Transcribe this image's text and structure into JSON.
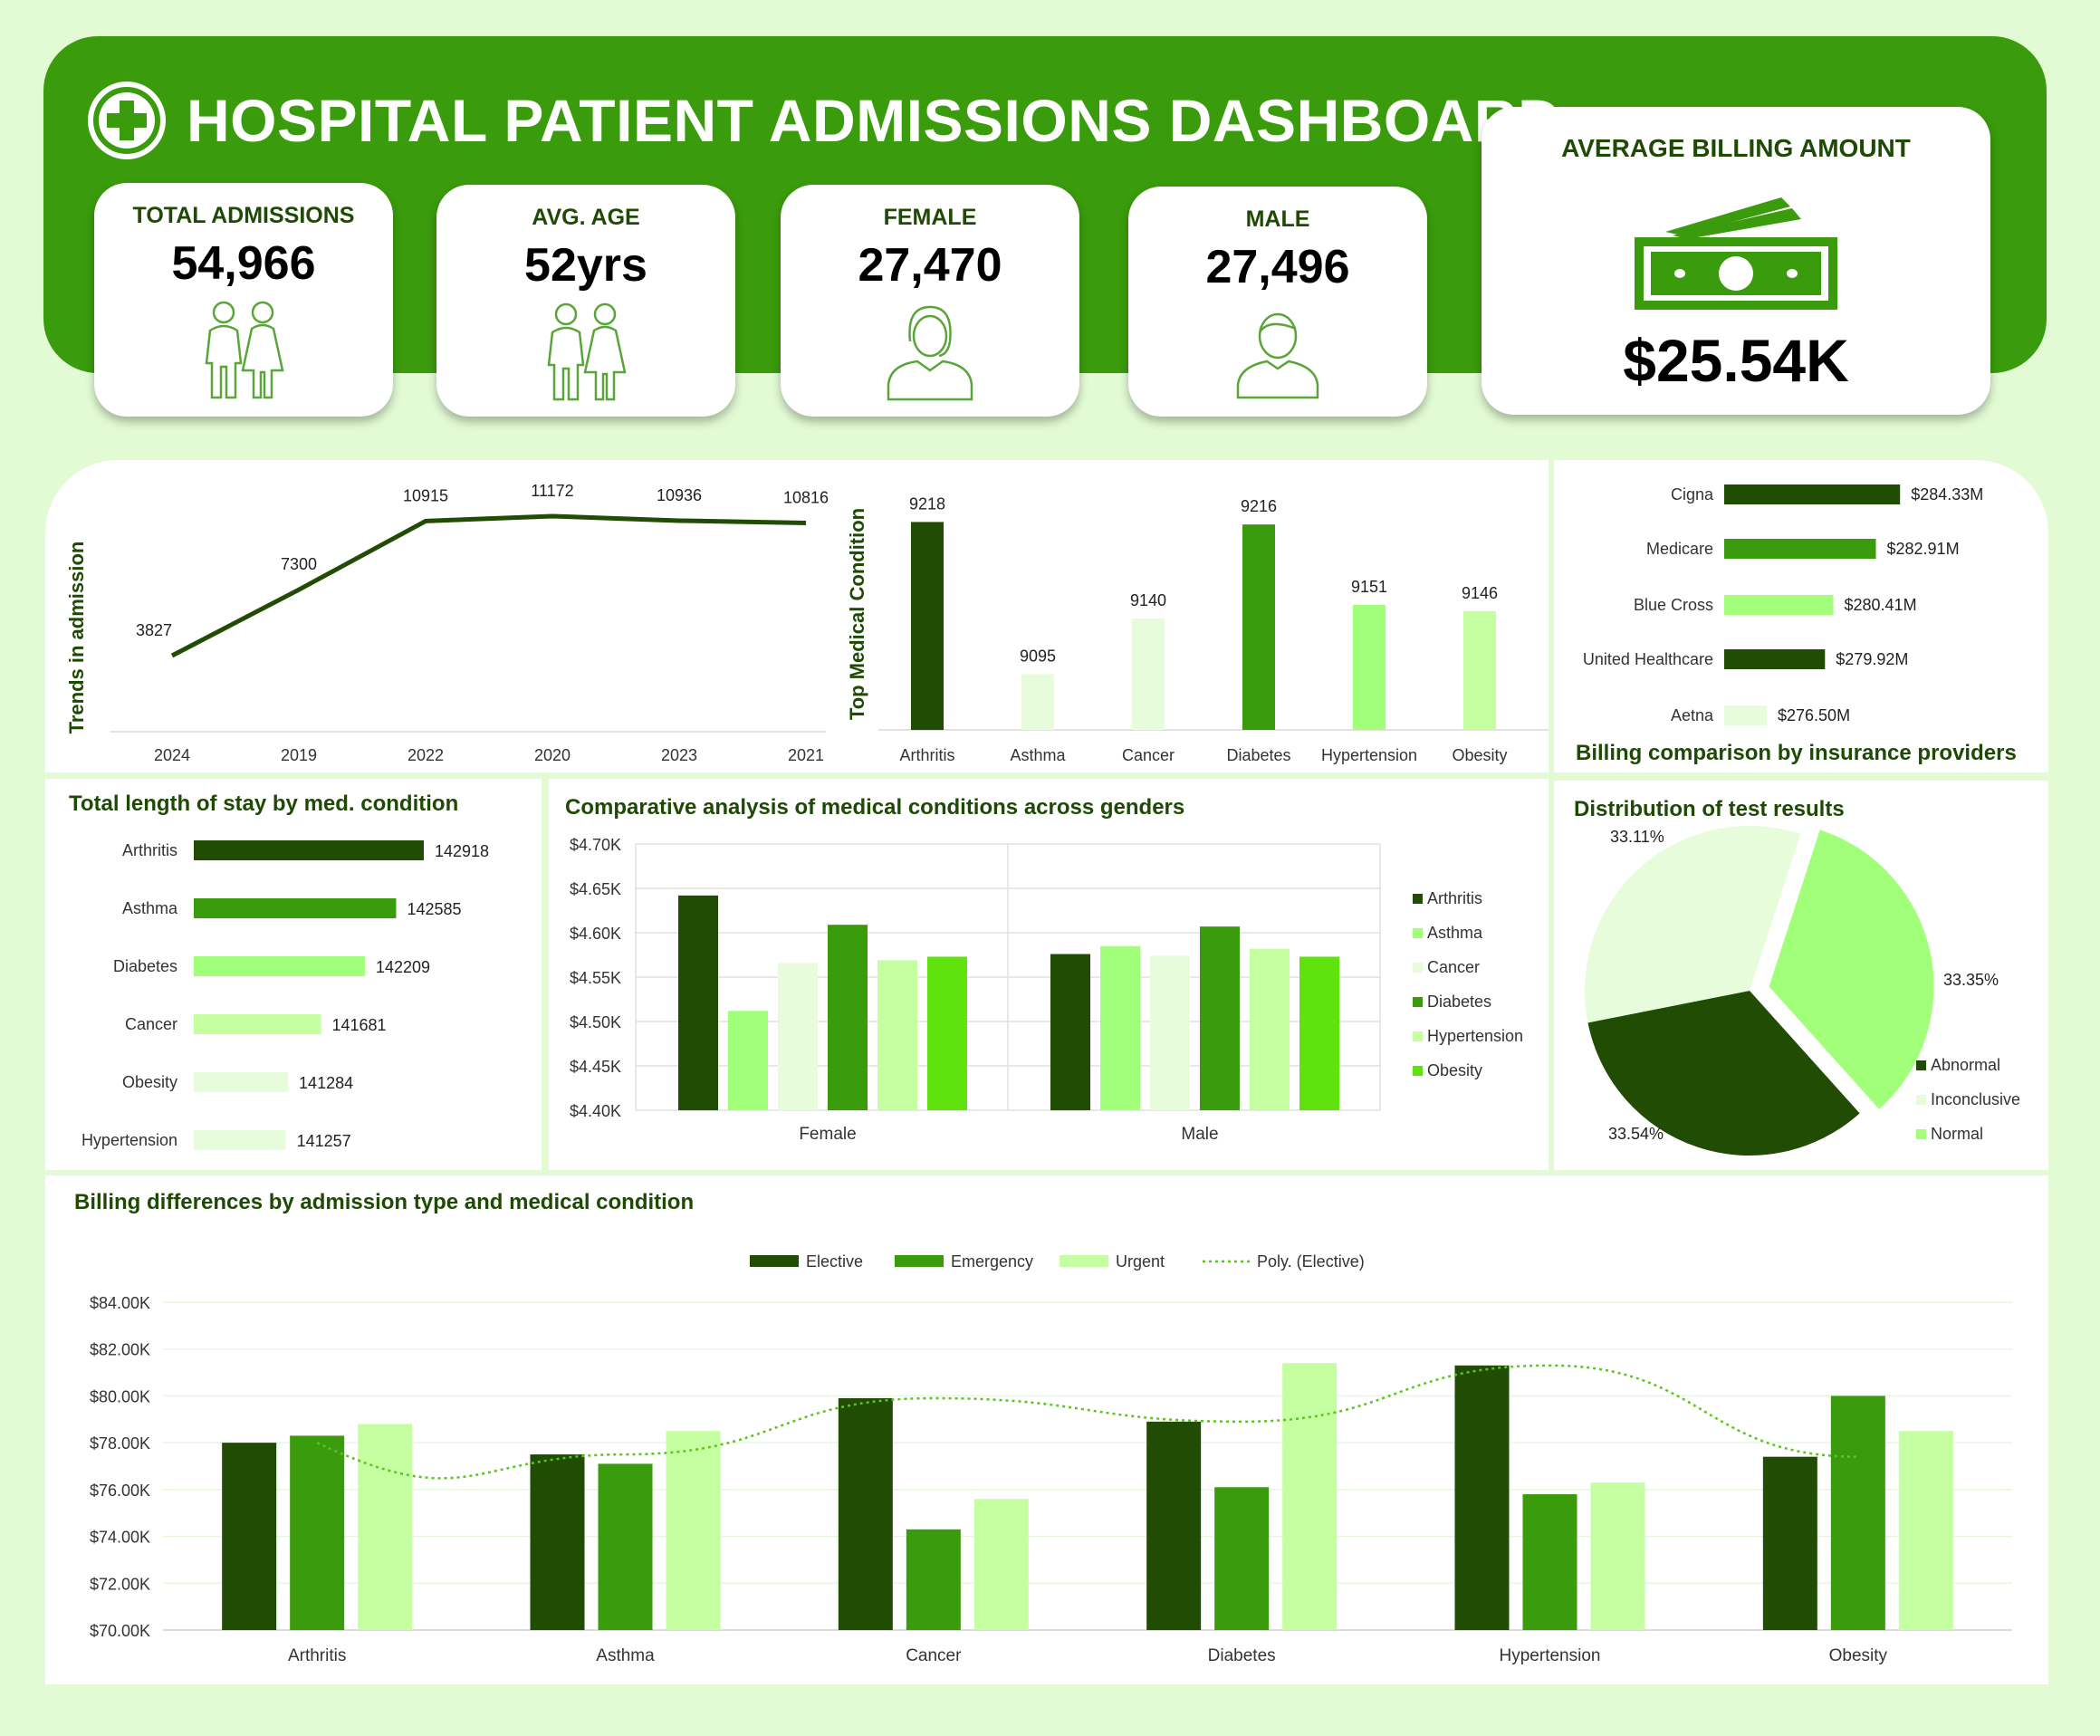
{
  "header": {
    "title": "HOSPITAL PATIENT ADMISSIONS DASHBOARD",
    "logo_icon": "medical-cross-icon"
  },
  "kpis": {
    "total_admissions": {
      "label": "TOTAL ADMISSIONS",
      "value": "54,966",
      "icon": "couple-icon"
    },
    "avg_age": {
      "label": "AVG. AGE",
      "value": "52yrs",
      "icon": "couple-icon"
    },
    "female": {
      "label": "FEMALE",
      "value": "27,470",
      "icon": "woman-icon"
    },
    "male": {
      "label": "MALE",
      "value": "27,496",
      "icon": "man-icon"
    },
    "billing": {
      "label": "AVERAGE BILLING AMOUNT",
      "value": "$25.54K",
      "icon": "money-icon"
    }
  },
  "colors": {
    "banner": "#3a9b0c",
    "page_bg": "#e3fbd5",
    "title_text": "#1e4a06",
    "dark": "#214c04",
    "mid": "#3a9b0c",
    "light": "#a2ff7a",
    "pale": "#e6fcda",
    "softpale": "#c6ffa1",
    "bright": "#5fe20e"
  },
  "chart_data": [
    {
      "id": "trends",
      "type": "line",
      "ylabel": "Trends in admission",
      "categories": [
        "2024",
        "2019",
        "2022",
        "2020",
        "2023",
        "2021"
      ],
      "values": [
        3827,
        7300,
        10915,
        11172,
        10936,
        10816
      ]
    },
    {
      "id": "top_condition",
      "type": "bar",
      "ylabel": "Top Medical Condition",
      "categories": [
        "Arthritis",
        "Asthma",
        "Cancer",
        "Diabetes",
        "Hypertension",
        "Obesity"
      ],
      "values": [
        9218,
        9095,
        9140,
        9216,
        9151,
        9146
      ],
      "ylim": [
        9050,
        9230
      ]
    },
    {
      "id": "insurance",
      "type": "bar",
      "orientation": "horizontal",
      "title": "Billing comparison by insurance providers",
      "categories": [
        "Cigna",
        "Medicare",
        "Blue Cross",
        "United Healthcare",
        "Aetna"
      ],
      "values": [
        284.33,
        282.91,
        280.41,
        279.92,
        276.5
      ],
      "labels": [
        "$284.33M",
        "$282.91M",
        "$280.41M",
        "$279.92M",
        "$276.50M"
      ],
      "xlim": [
        274,
        285
      ]
    },
    {
      "id": "length_of_stay",
      "type": "bar",
      "orientation": "horizontal",
      "title": "Total length of stay by med. condition",
      "categories": [
        "Arthritis",
        "Asthma",
        "Diabetes",
        "Cancer",
        "Obesity",
        "Hypertension"
      ],
      "values": [
        142918,
        142585,
        142209,
        141681,
        141284,
        141257
      ],
      "xlim": [
        140150,
        142918
      ]
    },
    {
      "id": "gender_conditions",
      "type": "bar",
      "title": "Comparative analysis of medical conditions across genders",
      "categories": [
        "Female",
        "Male"
      ],
      "series": [
        {
          "name": "Arthritis",
          "values": [
            4.642,
            4.576
          ]
        },
        {
          "name": "Asthma",
          "values": [
            4.512,
            4.585
          ]
        },
        {
          "name": "Cancer",
          "values": [
            4.566,
            4.574
          ]
        },
        {
          "name": "Diabetes",
          "values": [
            4.609,
            4.607
          ]
        },
        {
          "name": "Hypertension",
          "values": [
            4.569,
            4.582
          ]
        },
        {
          "name": "Obesity",
          "values": [
            4.573,
            4.573
          ]
        }
      ],
      "yticks": [
        "$4.40K",
        "$4.45K",
        "$4.50K",
        "$4.55K",
        "$4.60K",
        "$4.65K",
        "$4.70K"
      ],
      "ylim": [
        4.4,
        4.7
      ],
      "legend": "right"
    },
    {
      "id": "test_results",
      "type": "pie",
      "title": "Distribution of test results",
      "categories": [
        "Abnormal",
        "Inconclusive",
        "Normal"
      ],
      "values": [
        33.54,
        33.11,
        33.35
      ],
      "labels": [
        "33.54%",
        "33.11%",
        "33.35%"
      ],
      "legend": "bottom-right"
    },
    {
      "id": "billing_admission",
      "type": "bar",
      "title": "Billing differences by admission type and medical condition",
      "categories": [
        "Arthritis",
        "Asthma",
        "Cancer",
        "Diabetes",
        "Hypertension",
        "Obesity"
      ],
      "series": [
        {
          "name": "Elective",
          "values": [
            78.0,
            77.5,
            79.9,
            78.9,
            81.3,
            77.4
          ]
        },
        {
          "name": "Emergency",
          "values": [
            78.3,
            77.1,
            74.3,
            76.1,
            75.8,
            80.0
          ]
        },
        {
          "name": "Urgent",
          "values": [
            78.8,
            78.5,
            75.6,
            81.4,
            76.3,
            78.5
          ]
        }
      ],
      "trendline": {
        "name": "Poly. (Elective)"
      },
      "yticks": [
        "$70.00K",
        "$72.00K",
        "$74.00K",
        "$76.00K",
        "$78.00K",
        "$80.00K",
        "$82.00K",
        "$84.00K"
      ],
      "ylim": [
        70,
        84
      ],
      "legend": "top"
    }
  ]
}
